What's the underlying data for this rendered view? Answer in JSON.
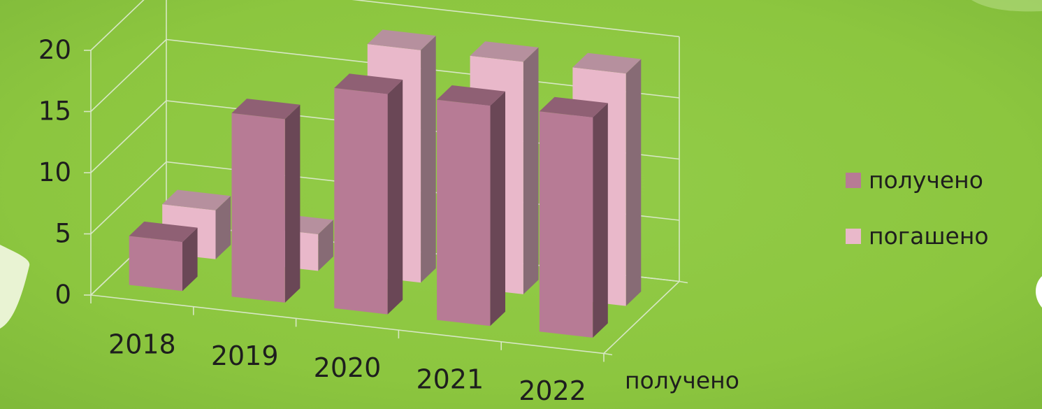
{
  "chart_data": {
    "type": "bar",
    "categories": [
      "2018",
      "2019",
      "2020",
      "2021",
      "2022"
    ],
    "series": [
      {
        "name": "получено",
        "values": [
          4,
          15,
          18,
          18,
          18
        ]
      },
      {
        "name": "погашено",
        "values": [
          4,
          3,
          19,
          19,
          19
        ]
      }
    ],
    "y_ticks": [
      "0",
      "5",
      "10",
      "15",
      "20"
    ],
    "ylim": [
      0,
      20
    ],
    "depth_axis_label": "получено",
    "legend": {
      "placement": "right"
    },
    "grid": true,
    "colors": {
      "background": "#8CC63F",
      "received": "#B77B95",
      "repaid": "#E9B8CA",
      "text": "#1E1E1E",
      "grid": "#D7E7C4"
    }
  }
}
